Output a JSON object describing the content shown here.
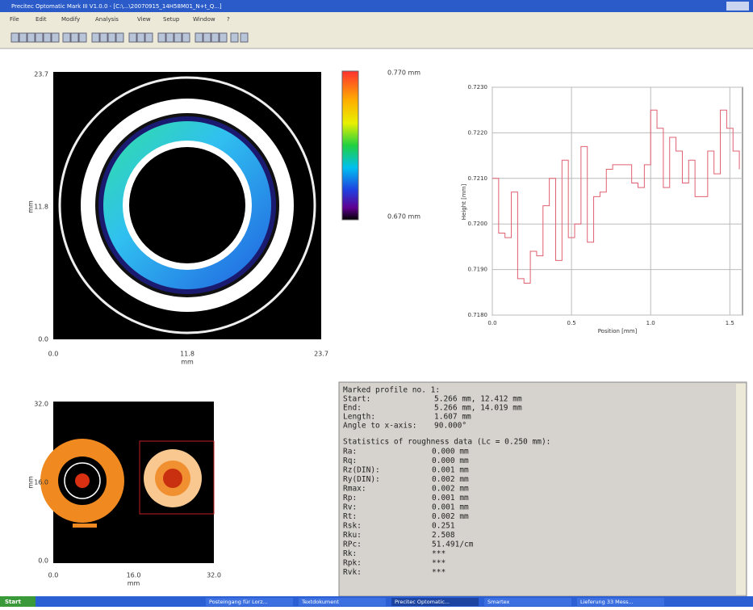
{
  "window": {
    "title": "Precitec Optomatic Mark III V1.0.0 - [C:\\...\\20070915_14H58M01_N+t_Q...]"
  },
  "menu": [
    "File",
    "Edit",
    "Modify",
    "Analysis",
    "View",
    "Setup",
    "Window",
    "?"
  ],
  "map": {
    "yticks": [
      "23.7",
      "11.8",
      "0.0"
    ],
    "xticks": [
      "0.0",
      "11.8",
      "23.7"
    ],
    "xlabel": "mm",
    "ylabel": "mm",
    "colorbar_max": "0.770 mm",
    "colorbar_min": "0.670 mm"
  },
  "profile": {
    "type": "line",
    "xlabel": "Position [mm]",
    "ylabel": "Height [mm]",
    "color": "#e06070",
    "xlim": [
      0,
      1.58
    ],
    "ylim": [
      0.718,
      0.723
    ],
    "xticks": [
      {
        "value": 0,
        "label": "0.0"
      },
      0.5,
      {
        "value": 1,
        "label": "1.0"
      },
      1.5
    ],
    "yticks": [
      {
        "value": 0.723,
        "label": "0.7230"
      },
      {
        "value": 0.722,
        "label": "0.7220"
      },
      {
        "value": 0.721,
        "label": "0.7210"
      },
      {
        "value": 0.72,
        "label": "0.7200"
      },
      {
        "value": 0.719,
        "label": "0.7190"
      },
      {
        "value": 0.718,
        "label": "0.7180"
      }
    ],
    "x": [
      0,
      0.04,
      0.08,
      0.12,
      0.16,
      0.2,
      0.24,
      0.28,
      0.32,
      0.36,
      0.4,
      0.44,
      0.48,
      0.52,
      0.56,
      0.6,
      0.64,
      0.68,
      0.72,
      0.76,
      0.8,
      0.84,
      0.88,
      0.92,
      0.96,
      1,
      1.04,
      1.08,
      1.12,
      1.16,
      1.2,
      1.24,
      1.28,
      1.32,
      1.36,
      1.4,
      1.44,
      1.48,
      1.52,
      1.56
    ],
    "values": [
      0.721,
      0.7198,
      0.7197,
      0.7207,
      0.7188,
      0.7187,
      0.7194,
      0.7193,
      0.7204,
      0.721,
      0.7192,
      0.7214,
      0.7197,
      0.72,
      0.7217,
      0.7196,
      0.7206,
      0.7207,
      0.7212,
      0.7213,
      0.7213,
      0.7213,
      0.7209,
      0.7208,
      0.7213,
      0.7225,
      0.7221,
      0.7208,
      0.7219,
      0.7216,
      0.7209,
      0.7214,
      0.7206,
      0.7206,
      0.7216,
      0.7211,
      0.7225,
      0.7221,
      0.7216,
      0.7212
    ]
  },
  "overview": {
    "yticks": [
      "32.0",
      "16.0",
      "0.0"
    ],
    "xticks": [
      "0.0",
      "16.0",
      "32.0"
    ],
    "xlabel": "mm",
    "ylabel": "mm"
  },
  "report": {
    "heading": "Marked profile no. 1:",
    "profile_rows": [
      [
        "Start:",
        "5.266 mm, 12.412 mm"
      ],
      [
        "End:",
        "5.266 mm, 14.019 mm"
      ],
      [
        "Length:",
        "1.607 mm"
      ],
      [
        "Angle to x-axis:",
        "90.000°"
      ]
    ],
    "stats_heading": "Statistics of roughness data (Lc = 0.250 mm):",
    "stats_rows": [
      [
        "Ra:",
        "0.000 mm"
      ],
      [
        "Rq:",
        "0.000 mm"
      ],
      [
        "Rz(DIN):",
        "0.001 mm"
      ],
      [
        "Ry(DIN):",
        "0.002 mm"
      ],
      [
        "Rmax:",
        "0.002 mm"
      ],
      [
        "Rp:",
        "0.001 mm"
      ],
      [
        "Rv:",
        "0.001 mm"
      ],
      [
        "Rt:",
        "0.002 mm"
      ],
      [
        "Rsk:",
        "0.251"
      ],
      [
        "Rku:",
        "2.508"
      ],
      [
        "RPc:",
        "51.491/cm"
      ],
      [
        "Rk:",
        "***"
      ],
      [
        "Rpk:",
        "***"
      ],
      [
        "Rvk:",
        "***"
      ]
    ]
  },
  "taskbar": {
    "start": "Start",
    "items": [
      "Posteingang für Lorz...",
      "Textdokument",
      "Precitec Optomatic...",
      "Smartex",
      "Lieferung 33 Mess..."
    ]
  }
}
